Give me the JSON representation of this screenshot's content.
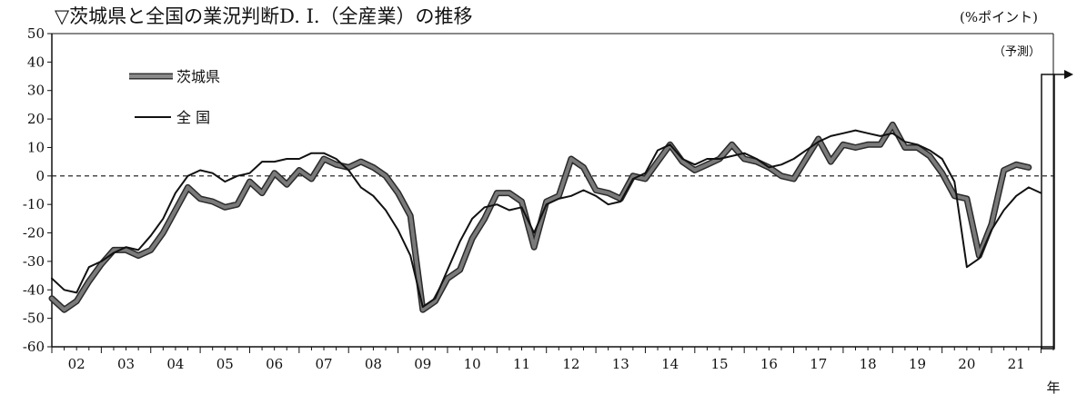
{
  "chart_data": {
    "type": "line",
    "title": "▽茨城県と全国の業況判断D. I.（全産業）の推移",
    "unit": "(%ポイント)",
    "x_unit": "年",
    "forecast_label": "（予測）",
    "ylim": [
      -60,
      50
    ],
    "yticks": [
      50,
      40,
      30,
      20,
      10,
      0,
      -10,
      -20,
      -30,
      -40,
      -50,
      -60
    ],
    "xlim": [
      2002.0,
      2022.25
    ],
    "year_labels": [
      "02",
      "03",
      "04",
      "05",
      "06",
      "07",
      "08",
      "09",
      "10",
      "11",
      "12",
      "13",
      "14",
      "15",
      "16",
      "17",
      "18",
      "19",
      "20",
      "21"
    ],
    "year_values": [
      2002,
      2003,
      2004,
      2005,
      2006,
      2007,
      2008,
      2009,
      2010,
      2011,
      2012,
      2013,
      2014,
      2015,
      2016,
      2017,
      2018,
      2019,
      2020,
      2021
    ],
    "zero_line": true,
    "grid": false,
    "legend_position": "top-left",
    "forecast_start": 2021.75,
    "series": [
      {
        "name": "茨城県",
        "style": "thick",
        "color": "#7a7a7a",
        "x": [
          2002.0,
          2002.25,
          2002.5,
          2002.75,
          2003.0,
          2003.25,
          2003.5,
          2003.75,
          2004.0,
          2004.25,
          2004.5,
          2004.75,
          2005.0,
          2005.25,
          2005.5,
          2005.75,
          2006.0,
          2006.25,
          2006.5,
          2006.75,
          2007.0,
          2007.25,
          2007.5,
          2007.75,
          2008.0,
          2008.25,
          2008.5,
          2008.75,
          2009.0,
          2009.25,
          2009.5,
          2009.75,
          2010.0,
          2010.25,
          2010.5,
          2010.75,
          2011.0,
          2011.25,
          2011.5,
          2011.75,
          2012.0,
          2012.25,
          2012.5,
          2012.75,
          2013.0,
          2013.25,
          2013.5,
          2013.75,
          2014.0,
          2014.25,
          2014.5,
          2014.75,
          2015.0,
          2015.25,
          2015.5,
          2015.75,
          2016.0,
          2016.25,
          2016.5,
          2016.75,
          2017.0,
          2017.25,
          2017.5,
          2017.75,
          2018.0,
          2018.25,
          2018.5,
          2018.75,
          2019.0,
          2019.25,
          2019.5,
          2019.75,
          2020.0,
          2020.25,
          2020.5,
          2020.75,
          2021.0,
          2021.25,
          2021.5,
          2021.75
        ],
        "y": [
          -43,
          -47,
          -44,
          -37,
          -31,
          -26,
          -26,
          -28,
          -26,
          -20,
          -12,
          -4,
          -8,
          -9,
          -11,
          -10,
          -2,
          -6,
          1,
          -3,
          2,
          -1,
          6,
          4,
          3,
          5,
          3,
          0,
          -6,
          -14,
          -47,
          -44,
          -36,
          -33,
          -22,
          -15,
          -6,
          -6,
          -9,
          -25,
          -9,
          -7,
          6,
          3,
          -5,
          -6,
          -8,
          0,
          -1,
          5,
          11,
          5,
          2,
          4,
          6,
          11,
          6,
          5,
          3,
          0,
          -1,
          6,
          13,
          5,
          11,
          10,
          11,
          11,
          18,
          10,
          10,
          7,
          1,
          -7,
          -8,
          -28,
          -17,
          2,
          4,
          3
        ]
      },
      {
        "name": "全 国",
        "style": "thin",
        "color": "#111111",
        "x": [
          2002.0,
          2002.25,
          2002.5,
          2002.75,
          2003.0,
          2003.25,
          2003.5,
          2003.75,
          2004.0,
          2004.25,
          2004.5,
          2004.75,
          2005.0,
          2005.25,
          2005.5,
          2005.75,
          2006.0,
          2006.25,
          2006.5,
          2006.75,
          2007.0,
          2007.25,
          2007.5,
          2007.75,
          2008.0,
          2008.25,
          2008.5,
          2008.75,
          2009.0,
          2009.25,
          2009.5,
          2009.75,
          2010.0,
          2010.25,
          2010.5,
          2010.75,
          2011.0,
          2011.25,
          2011.5,
          2011.75,
          2012.0,
          2012.25,
          2012.5,
          2012.75,
          2013.0,
          2013.25,
          2013.5,
          2013.75,
          2014.0,
          2014.25,
          2014.5,
          2014.75,
          2015.0,
          2015.25,
          2015.5,
          2015.75,
          2016.0,
          2016.25,
          2016.5,
          2016.75,
          2017.0,
          2017.25,
          2017.5,
          2017.75,
          2018.0,
          2018.25,
          2018.5,
          2018.75,
          2019.0,
          2019.25,
          2019.5,
          2019.75,
          2020.0,
          2020.25,
          2020.5,
          2020.75,
          2021.0,
          2021.25,
          2021.5,
          2021.75,
          2022.0
        ],
        "y": [
          -36,
          -40,
          -41,
          -32,
          -30,
          -27,
          -25,
          -26,
          -21,
          -15,
          -6,
          0,
          2,
          1,
          -2,
          0,
          1,
          5,
          5,
          6,
          6,
          8,
          8,
          6,
          2,
          -4,
          -7,
          -12,
          -19,
          -28,
          -46,
          -43,
          -33,
          -23,
          -15,
          -11,
          -10,
          -12,
          -11,
          -20,
          -10,
          -8,
          -7,
          -5,
          -7,
          -10,
          -9,
          -1,
          1,
          9,
          11,
          6,
          4,
          6,
          6,
          7,
          8,
          6,
          3,
          4,
          6,
          9,
          12,
          14,
          15,
          16,
          15,
          14,
          15,
          12,
          11,
          9,
          6,
          -2,
          -32,
          -29,
          -19,
          -12,
          -7,
          -4,
          -6
        ]
      }
    ]
  }
}
